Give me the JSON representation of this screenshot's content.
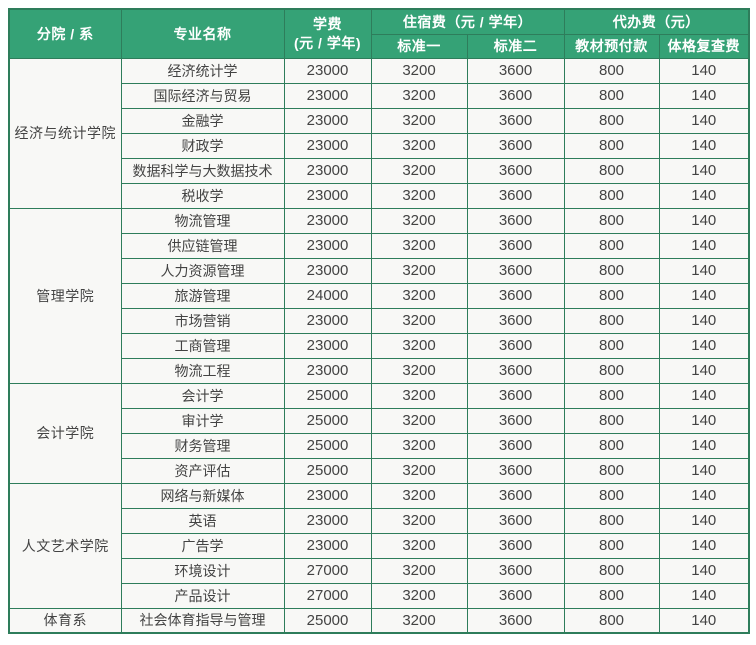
{
  "table": {
    "header": {
      "col_department": "分院 / 系",
      "col_major": "专业名称",
      "col_tuition_line1": "学费",
      "col_tuition_line2": "(元 / 学年)",
      "col_accommodation": "住宿费（元 / 学年）",
      "col_accommodation_std1": "标准一",
      "col_accommodation_std2": "标准二",
      "col_agency": "代办费（元）",
      "col_agency_textbook": "教材预付款",
      "col_agency_checkup": "体格复查费"
    },
    "groups": [
      {
        "department": "经济与统计学院",
        "rows": [
          {
            "major": "经济统计学",
            "tuition": "23000",
            "std1": "3200",
            "std2": "3600",
            "textbook": "800",
            "checkup": "140"
          },
          {
            "major": "国际经济与贸易",
            "tuition": "23000",
            "std1": "3200",
            "std2": "3600",
            "textbook": "800",
            "checkup": "140"
          },
          {
            "major": "金融学",
            "tuition": "23000",
            "std1": "3200",
            "std2": "3600",
            "textbook": "800",
            "checkup": "140"
          },
          {
            "major": "财政学",
            "tuition": "23000",
            "std1": "3200",
            "std2": "3600",
            "textbook": "800",
            "checkup": "140"
          },
          {
            "major": "数据科学与大数据技术",
            "tuition": "23000",
            "std1": "3200",
            "std2": "3600",
            "textbook": "800",
            "checkup": "140"
          },
          {
            "major": "税收学",
            "tuition": "23000",
            "std1": "3200",
            "std2": "3600",
            "textbook": "800",
            "checkup": "140"
          }
        ]
      },
      {
        "department": "管理学院",
        "rows": [
          {
            "major": "物流管理",
            "tuition": "23000",
            "std1": "3200",
            "std2": "3600",
            "textbook": "800",
            "checkup": "140"
          },
          {
            "major": "供应链管理",
            "tuition": "23000",
            "std1": "3200",
            "std2": "3600",
            "textbook": "800",
            "checkup": "140"
          },
          {
            "major": "人力资源管理",
            "tuition": "23000",
            "std1": "3200",
            "std2": "3600",
            "textbook": "800",
            "checkup": "140"
          },
          {
            "major": "旅游管理",
            "tuition": "24000",
            "std1": "3200",
            "std2": "3600",
            "textbook": "800",
            "checkup": "140"
          },
          {
            "major": "市场营销",
            "tuition": "23000",
            "std1": "3200",
            "std2": "3600",
            "textbook": "800",
            "checkup": "140"
          },
          {
            "major": "工商管理",
            "tuition": "23000",
            "std1": "3200",
            "std2": "3600",
            "textbook": "800",
            "checkup": "140"
          },
          {
            "major": "物流工程",
            "tuition": "23000",
            "std1": "3200",
            "std2": "3600",
            "textbook": "800",
            "checkup": "140"
          }
        ]
      },
      {
        "department": "会计学院",
        "rows": [
          {
            "major": "会计学",
            "tuition": "25000",
            "std1": "3200",
            "std2": "3600",
            "textbook": "800",
            "checkup": "140"
          },
          {
            "major": "审计学",
            "tuition": "25000",
            "std1": "3200",
            "std2": "3600",
            "textbook": "800",
            "checkup": "140"
          },
          {
            "major": "财务管理",
            "tuition": "25000",
            "std1": "3200",
            "std2": "3600",
            "textbook": "800",
            "checkup": "140"
          },
          {
            "major": "资产评估",
            "tuition": "25000",
            "std1": "3200",
            "std2": "3600",
            "textbook": "800",
            "checkup": "140"
          }
        ]
      },
      {
        "department": "人文艺术学院",
        "rows": [
          {
            "major": "网络与新媒体",
            "tuition": "23000",
            "std1": "3200",
            "std2": "3600",
            "textbook": "800",
            "checkup": "140"
          },
          {
            "major": "英语",
            "tuition": "23000",
            "std1": "3200",
            "std2": "3600",
            "textbook": "800",
            "checkup": "140"
          },
          {
            "major": "广告学",
            "tuition": "23000",
            "std1": "3200",
            "std2": "3600",
            "textbook": "800",
            "checkup": "140"
          },
          {
            "major": "环境设计",
            "tuition": "27000",
            "std1": "3200",
            "std2": "3600",
            "textbook": "800",
            "checkup": "140"
          },
          {
            "major": "产品设计",
            "tuition": "27000",
            "std1": "3200",
            "std2": "3600",
            "textbook": "800",
            "checkup": "140"
          }
        ]
      },
      {
        "department": "体育系",
        "rows": [
          {
            "major": "社会体育指导与管理",
            "tuition": "25000",
            "std1": "3200",
            "std2": "3600",
            "textbook": "800",
            "checkup": "140"
          }
        ]
      }
    ]
  },
  "colors": {
    "header_bg": "#35a276",
    "border": "#2e7d5b",
    "cell_bg": "#f8f8f6",
    "body_text": "#434343",
    "header_text": "#ffffff"
  }
}
